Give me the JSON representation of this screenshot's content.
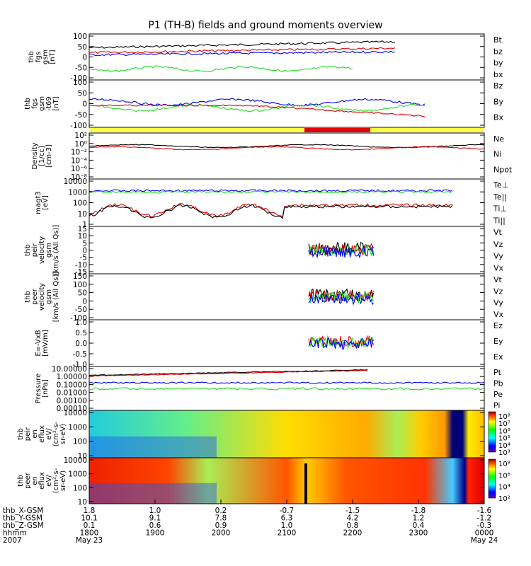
{
  "title": "P1 (TH-B) fields and ground moments overview",
  "colors": {
    "black": "#000000",
    "red": "#e00000",
    "green": "#22dd22",
    "blue": "#0000ee",
    "yellow": "#ffff44"
  },
  "chart_data": [
    {
      "type": "line",
      "ylabel": [
        "thb",
        "fgs",
        "gsm",
        "[nT]"
      ],
      "yticks": [
        "100",
        "50",
        "0",
        "-50",
        "-100"
      ],
      "ylim": [
        -100,
        100
      ],
      "legend": [
        {
          "name": "Bt",
          "color": "black"
        },
        {
          "name": "bz",
          "color": "red"
        },
        {
          "name": "by",
          "color": "green"
        },
        {
          "name": "bx",
          "color": "blue"
        }
      ]
    },
    {
      "type": "line",
      "ylabel": [
        "thb",
        "fgs",
        "gsm",
        "-t69",
        "[nT]"
      ],
      "yticks": [
        "100",
        "50",
        "0",
        "-50",
        "-100"
      ],
      "ylim": [
        -100,
        100
      ],
      "legend": [
        {
          "name": "Bz",
          "color": "red"
        },
        {
          "name": "By",
          "color": "green"
        },
        {
          "name": "Bx",
          "color": "blue"
        }
      ]
    },
    {
      "type": "line",
      "ylabel": [
        "Density",
        "[1/cc]",
        "[cm-3]"
      ],
      "yticks": [
        "10²",
        "10⁰",
        "10⁻²",
        "10⁻⁴",
        "10⁻⁶",
        "10⁻⁸"
      ],
      "scale": "log",
      "legend": [
        {
          "name": "Ne",
          "color": "red"
        },
        {
          "name": "Ni",
          "color": "black"
        },
        {
          "name": "Npot",
          "color": "blue"
        }
      ]
    },
    {
      "type": "line",
      "ylabel": [
        "magt3",
        "[eV]"
      ],
      "yticks": [
        "10000",
        "1000",
        "100",
        "10",
        "1"
      ],
      "scale": "log",
      "legend": [
        {
          "name": "Te⊥",
          "color": "red"
        },
        {
          "name": "Te||",
          "color": "black"
        },
        {
          "name": "Ti⊥",
          "color": "blue"
        },
        {
          "name": "Ti||",
          "color": "green"
        }
      ]
    },
    {
      "type": "line",
      "ylabel": [
        "thb",
        "peir",
        "velocity",
        "gsm",
        "[km/s (All Qs)]"
      ],
      "yticks": [
        "15",
        "10",
        "5",
        "0",
        "-5",
        "-10",
        "-15"
      ],
      "ylim": [
        -15,
        15
      ],
      "legend": [
        {
          "name": "Vt",
          "color": "black"
        },
        {
          "name": "Vz",
          "color": "red"
        },
        {
          "name": "Vy",
          "color": "green"
        },
        {
          "name": "Vx",
          "color": "blue"
        }
      ]
    },
    {
      "type": "line",
      "ylabel": [
        "thb",
        "peer",
        "velocity",
        "gsm",
        "[km/s (All Qs)]"
      ],
      "yticks": [
        "150",
        "100",
        "50",
        "0",
        "-50",
        "-100"
      ],
      "ylim": [
        -100,
        150
      ],
      "legend": [
        {
          "name": "Vt",
          "color": "black"
        },
        {
          "name": "Vz",
          "color": "red"
        },
        {
          "name": "Vy",
          "color": "green"
        },
        {
          "name": "Vx",
          "color": "blue"
        }
      ]
    },
    {
      "type": "line",
      "ylabel": [
        "E=-VxB",
        "[mV/m]"
      ],
      "yticks": [
        "1.0",
        "0.5",
        "0.0",
        "-0.5",
        "-1.0"
      ],
      "ylim": [
        -1,
        1
      ],
      "legend": [
        {
          "name": "Ez",
          "color": "red"
        },
        {
          "name": "Ey",
          "color": "green"
        },
        {
          "name": "Ex",
          "color": "blue"
        }
      ]
    },
    {
      "type": "line",
      "ylabel": [
        "Pressure",
        "[nPa]"
      ],
      "yticks": [
        "10.00000",
        "1.00000",
        "0.10000",
        "0.01000",
        "0.00100",
        "0.00010"
      ],
      "scale": "log",
      "legend": [
        {
          "name": "Pt",
          "color": "black"
        },
        {
          "name": "Pb",
          "color": "red"
        },
        {
          "name": "Pe",
          "color": "green"
        },
        {
          "name": "Pi",
          "color": "blue"
        }
      ]
    },
    {
      "type": "heatmap",
      "ylabel": [
        "thb",
        "peir",
        "en",
        "eflux",
        "eV/",
        "(cm²-s-",
        "sr-eV)"
      ],
      "yticks": [
        "10000",
        "1000",
        "100",
        "10"
      ],
      "colorbar": [
        "10⁸",
        "10⁷",
        "10⁶",
        "10⁵",
        "10⁴",
        "10³"
      ]
    },
    {
      "type": "heatmap",
      "ylabel": [
        "thb",
        "peer",
        "en",
        "eflux",
        "eV/",
        "(cm²-s-",
        "sr-eV)"
      ],
      "yticks": [
        "10000",
        "1000",
        "100",
        "10"
      ],
      "colorbar": [
        "10⁸",
        "10⁶",
        "10⁴",
        "10²"
      ]
    }
  ],
  "xaxis": {
    "row_labels": [
      "thb_X-GSM",
      "thb_Y-GSM",
      "thb_Z-GSM",
      "hhmm",
      "2007"
    ],
    "columns": [
      [
        "1.8",
        "10.1",
        "0.1",
        "1800",
        "May 23"
      ],
      [
        "1.0",
        "9.1",
        "0.6",
        "1900",
        ""
      ],
      [
        "0.2",
        "7.8",
        "0.9",
        "2000",
        ""
      ],
      [
        "-0.7",
        "6.3",
        "1.0",
        "2100",
        ""
      ],
      [
        "-1.5",
        "4.2",
        "0.8",
        "2200",
        ""
      ],
      [
        "-1.8",
        "1.2",
        "0.4",
        "2300",
        ""
      ],
      [
        "-1.6",
        "-1.2",
        "-0.3",
        "0000",
        "May 24"
      ]
    ]
  }
}
